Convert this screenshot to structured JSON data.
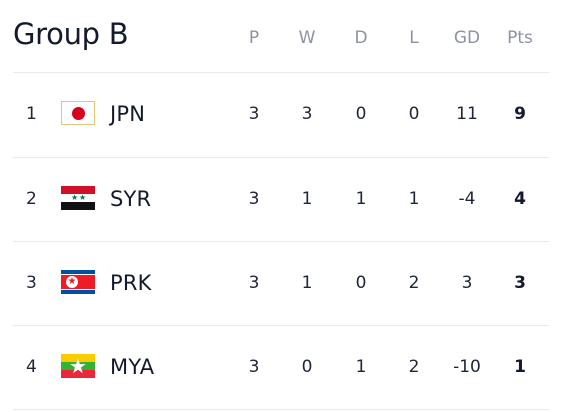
{
  "group": {
    "title": "Group B"
  },
  "columns": {
    "played": "P",
    "won": "W",
    "drawn": "D",
    "lost": "L",
    "goal_difference": "GD",
    "points": "Pts"
  },
  "standings": [
    {
      "rank": "1",
      "team": "JPN",
      "flag_icon": "japan-flag-icon",
      "p": "3",
      "w": "3",
      "d": "0",
      "l": "0",
      "gd": "11",
      "pts": "9"
    },
    {
      "rank": "2",
      "team": "SYR",
      "flag_icon": "syria-flag-icon",
      "p": "3",
      "w": "1",
      "d": "1",
      "l": "1",
      "gd": "-4",
      "pts": "4"
    },
    {
      "rank": "3",
      "team": "PRK",
      "flag_icon": "north-korea-flag-icon",
      "p": "3",
      "w": "1",
      "d": "0",
      "l": "2",
      "gd": "3",
      "pts": "3"
    },
    {
      "rank": "4",
      "team": "MYA",
      "flag_icon": "myanmar-flag-icon",
      "p": "3",
      "w": "0",
      "d": "1",
      "l": "2",
      "gd": "-10",
      "pts": "1"
    }
  ],
  "colors": {
    "text_primary": "#121a2b",
    "text_header": "#8c93a1",
    "divider": "#e8eaee"
  }
}
